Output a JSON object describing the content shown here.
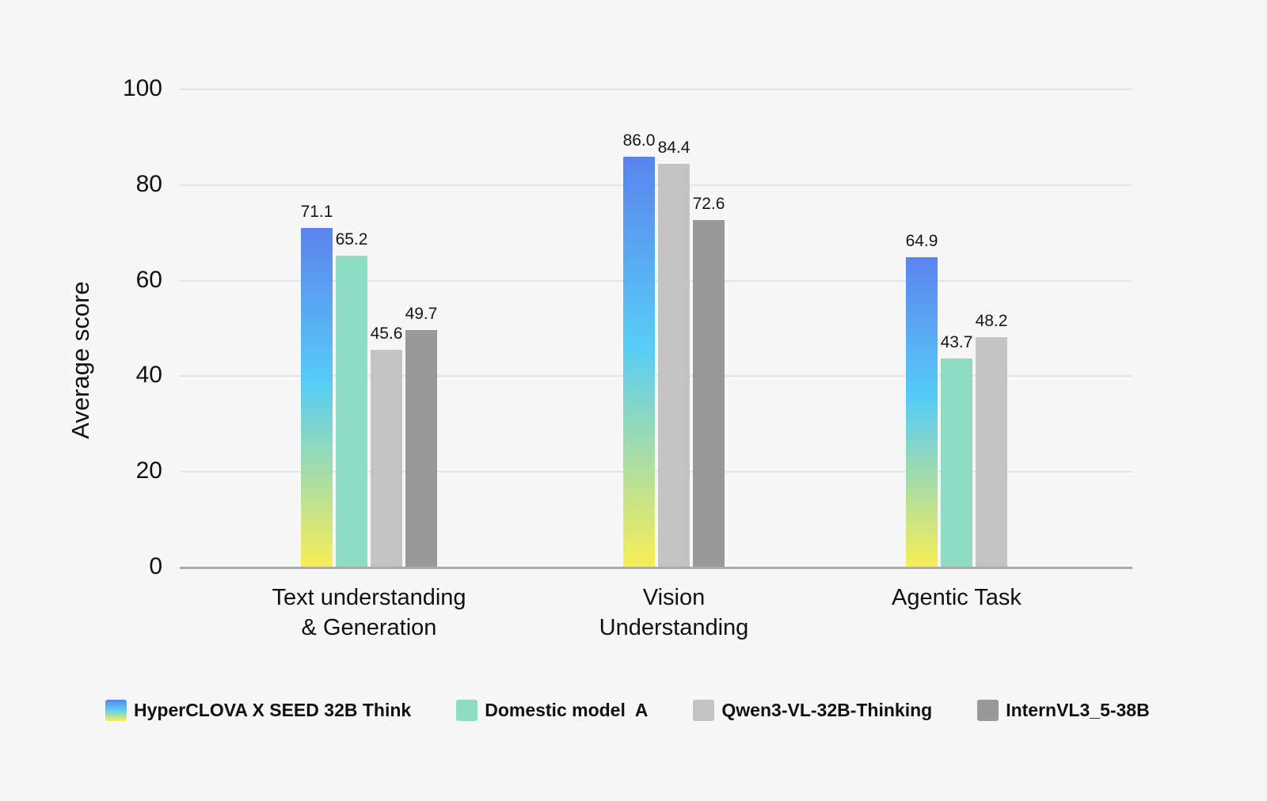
{
  "page": {
    "background": "#f7f7f7",
    "text_color": "#161616",
    "grid_color": "#e4e4e4",
    "baseline_color": "#ababab"
  },
  "chart_data": {
    "type": "bar",
    "title": "",
    "ylabel": "Average score",
    "xlabel": "",
    "ylim": [
      0,
      100
    ],
    "yticks": [
      0,
      20,
      40,
      60,
      80,
      100
    ],
    "grid": true,
    "legend_position": "bottom",
    "categories": [
      "Text understanding\n& Generation",
      "Vision\nUnderstanding",
      "Agentic Task"
    ],
    "series": [
      {
        "name": "HyperCLOVA X SEED 32B Think",
        "color_type": "gradient",
        "gradient": [
          "#5b83ee",
          "#57cdf6",
          "#f9ee55"
        ],
        "values": [
          71.1,
          86.0,
          64.9
        ]
      },
      {
        "name": "Domestic model  A",
        "color_type": "solid",
        "color": "#8fdcc5",
        "values": [
          65.2,
          null,
          43.7
        ]
      },
      {
        "name": "Qwen3-VL-32B-Thinking",
        "color_type": "solid",
        "color": "#c3c3c3",
        "values": [
          45.6,
          84.4,
          48.2
        ]
      },
      {
        "name": "InternVL3_5-38B",
        "color_type": "solid",
        "color": "#999999",
        "values": [
          49.7,
          72.6,
          null
        ]
      }
    ],
    "value_label_decimals": 1
  }
}
